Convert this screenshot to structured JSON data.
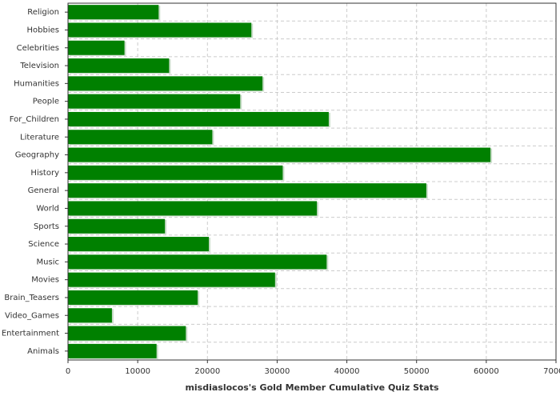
{
  "chart_data": {
    "type": "hbar",
    "x_label": "misdiaslocos's Gold Member Cumulative Quiz Stats",
    "categories": [
      "Religion",
      "Hobbies",
      "Celebrities",
      "Television",
      "Humanities",
      "People",
      "For_Children",
      "Literature",
      "Geography",
      "History",
      "General",
      "World",
      "Sports",
      "Science",
      "Music",
      "Movies",
      "Brain_Teasers",
      "Video_Games",
      "Entertainment",
      "Animals"
    ],
    "values": [
      13000,
      26300,
      8100,
      14500,
      27900,
      24700,
      37400,
      20700,
      60600,
      30800,
      51400,
      35700,
      13900,
      20200,
      37100,
      29700,
      18600,
      6300,
      16900,
      12700
    ],
    "color": "#008000",
    "xlim": [
      0,
      70000
    ],
    "xticks": [
      0,
      10000,
      20000,
      30000,
      40000,
      50000,
      60000,
      70000
    ],
    "grid": true
  }
}
